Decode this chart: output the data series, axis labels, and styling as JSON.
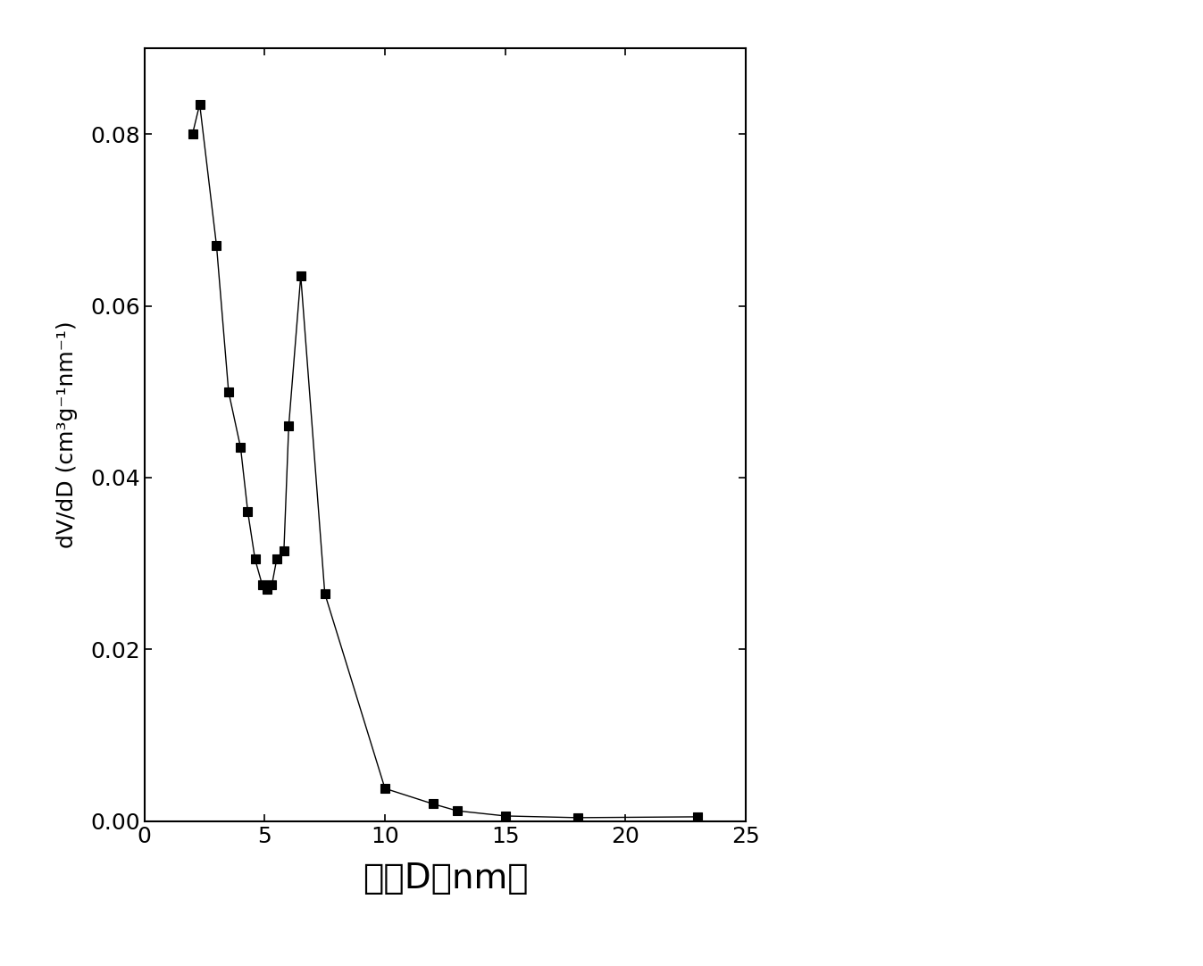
{
  "x": [
    2.0,
    2.3,
    3.0,
    3.5,
    4.0,
    4.3,
    4.6,
    4.9,
    5.1,
    5.3,
    5.5,
    5.8,
    6.0,
    6.5,
    7.5,
    10.0,
    12.0,
    13.0,
    15.0,
    18.0,
    23.0
  ],
  "y": [
    0.08,
    0.0835,
    0.067,
    0.05,
    0.0435,
    0.036,
    0.0305,
    0.0275,
    0.027,
    0.0275,
    0.0305,
    0.0315,
    0.046,
    0.0635,
    0.0265,
    0.0038,
    0.002,
    0.0012,
    0.0006,
    0.0004,
    0.0005
  ],
  "xlabel_chinese": "孔径D（nm）",
  "ylabel_ascii": "dV/dD (cm³g⁻¹nm⁻¹)",
  "xlim": [
    0,
    25
  ],
  "ylim": [
    0,
    0.09
  ],
  "xticks": [
    0,
    5,
    10,
    15,
    20,
    25
  ],
  "yticks": [
    0.0,
    0.02,
    0.04,
    0.06,
    0.08
  ],
  "marker_color": "#000000",
  "line_color": "#000000",
  "background_color": "#ffffff",
  "marker_size": 7,
  "line_width": 1.0,
  "xlabel_fontsize": 28,
  "ylabel_fontsize": 18,
  "tick_fontsize": 18
}
